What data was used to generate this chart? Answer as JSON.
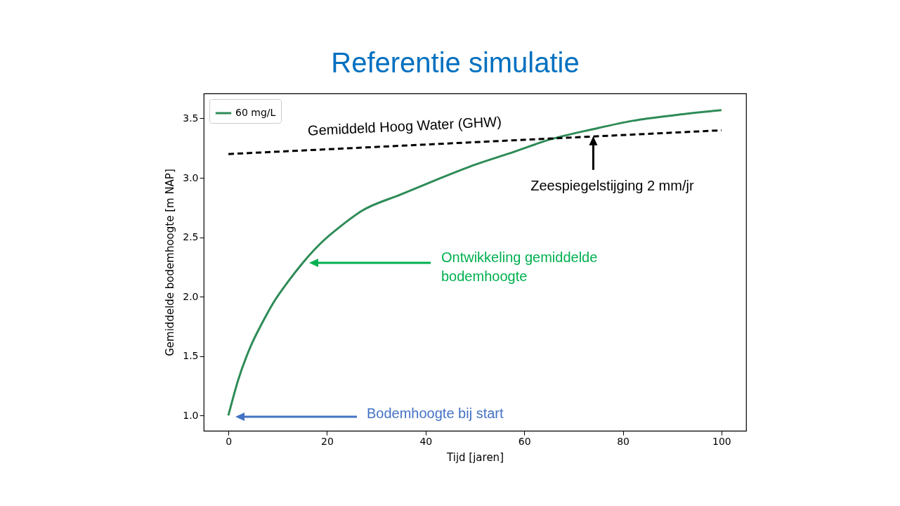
{
  "chart_data": {
    "type": "line",
    "title": "Referentie simulatie",
    "xlabel": "Tijd [jaren]",
    "ylabel": "Gemiddelde bodemhoogte [m NAP]",
    "series": [
      {
        "name": "60 mg/L",
        "color": "#2e8b57",
        "line_style": "solid",
        "x": [
          0,
          2,
          4.5,
          7,
          9,
          12,
          15,
          19,
          23,
          27,
          35,
          42,
          50,
          58,
          65,
          74,
          82,
          91,
          100
        ],
        "values": [
          1.0,
          1.3,
          1.58,
          1.79,
          1.94,
          2.12,
          2.28,
          2.46,
          2.6,
          2.72,
          2.86,
          2.98,
          3.11,
          3.22,
          3.32,
          3.41,
          3.48,
          3.53,
          3.57
        ]
      },
      {
        "color": "#000000",
        "line_style": "dashed",
        "x": [
          0,
          100
        ],
        "values": [
          3.2,
          3.4
        ]
      }
    ],
    "xlim": [
      -5,
      105
    ],
    "ylim": [
      0.87,
      3.71
    ],
    "xticks": [
      0,
      20,
      40,
      60,
      80,
      100
    ],
    "yticks": [
      {
        "value": 1,
        "label": "1.0"
      },
      1.5,
      {
        "value": 2,
        "label": "2.0"
      },
      2.5,
      {
        "value": 3,
        "label": "3.0"
      },
      3.5
    ],
    "legend": "top left",
    "annotations": [
      {
        "text": "Gemiddeld Hoog Water (GHW)",
        "x": 15,
        "y": 3.23
      },
      {
        "text": "Zeespiegelstijging 2 mm/jr",
        "x": 74,
        "y": 3.35
      },
      "Ontwikkeling gemiddelde bodemhoogte",
      "Bodemhoogte bij start"
    ]
  }
}
